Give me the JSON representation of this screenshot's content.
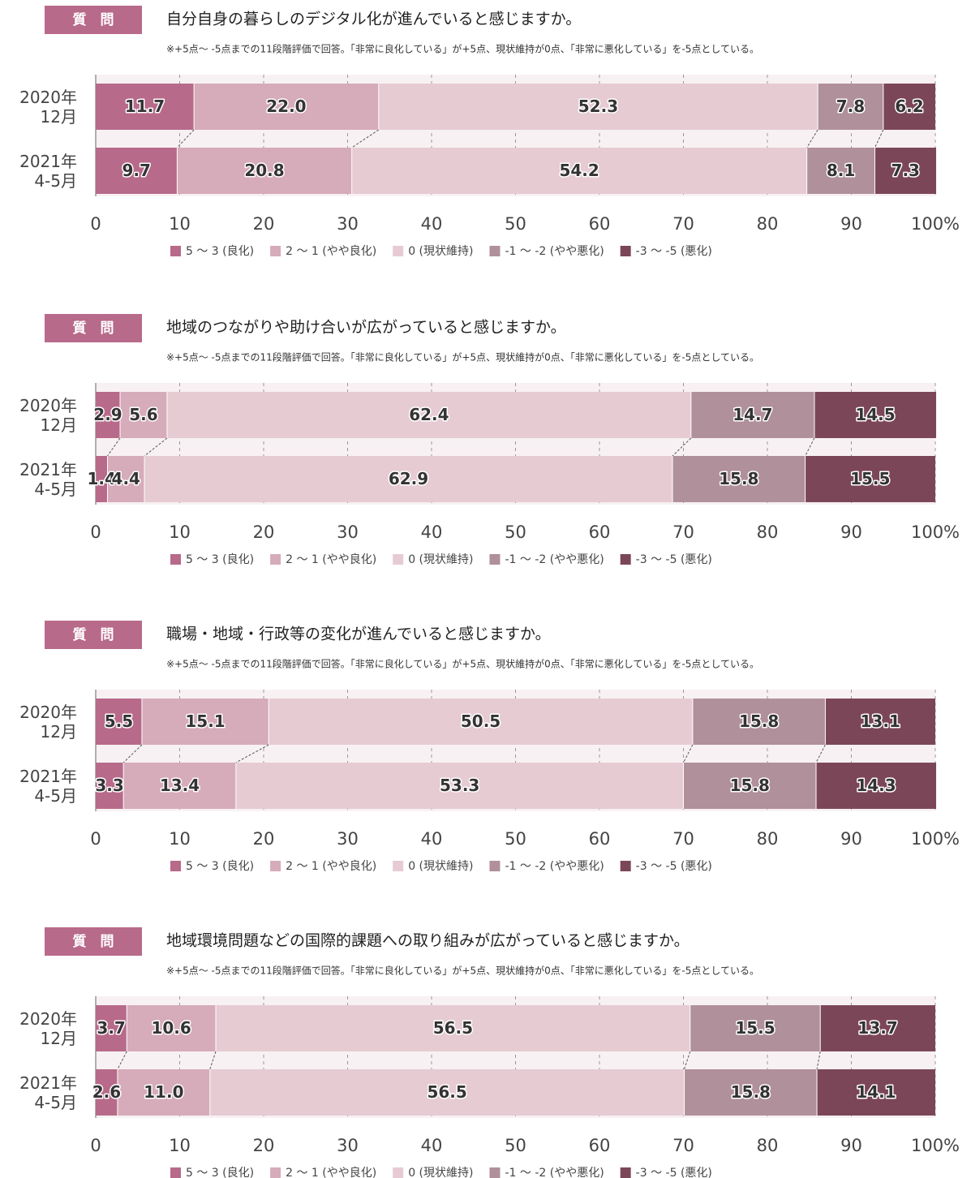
{
  "chart_data": [
    {
      "type": "bar",
      "orientation": "horizontal",
      "stacked": true,
      "badge": "質　問",
      "title": "自分自身の暮らしのデジタル化が進んでいると感じますか。",
      "subtitle": "※+5点～ -5点までの11段階評価で回答。「非常に良化している」が+5点、現状維持が0点、「非常に悪化している」を-5点としている。",
      "categories": [
        "2020年\n12月",
        "2021年\n4-5月"
      ],
      "xlim": [
        0,
        100
      ],
      "xticks": [
        0,
        10,
        20,
        30,
        40,
        50,
        60,
        70,
        80,
        90,
        {
          "value": 100,
          "label": "100%"
        }
      ],
      "grid": true,
      "legend": "bottom",
      "series": [
        {
          "name": "5 ～ 3 (良化)",
          "color": "#b86a8a",
          "values": [
            11.7,
            9.7
          ],
          "value_labels": [
            "11.7",
            "9.7"
          ]
        },
        {
          "name": "2 ～ 1 (やや良化)",
          "color": "#d6abba",
          "values": [
            22.0,
            20.8
          ],
          "value_labels": [
            "22.0",
            "20.8"
          ]
        },
        {
          "name": "0 (現状維持)",
          "color": "#e6cbd3",
          "values": [
            52.3,
            54.2
          ],
          "value_labels": [
            "52.3",
            "54.2"
          ]
        },
        {
          "name": "-1 ～ -2 (やや悪化)",
          "color": "#b0909b",
          "values": [
            7.8,
            8.1
          ],
          "value_labels": [
            "7.8",
            "8.1"
          ]
        },
        {
          "name": "-3 ～ -5 (悪化)",
          "color": "#7c4659",
          "values": [
            6.2,
            7.3
          ],
          "value_labels": [
            "6.2",
            "7.3"
          ]
        }
      ]
    },
    {
      "type": "bar",
      "orientation": "horizontal",
      "stacked": true,
      "badge": "質　問",
      "title": "地域のつながりや助け合いが広がっていると感じますか。",
      "subtitle": "※+5点～ -5点までの11段階評価で回答。「非常に良化している」が+5点、現状維持が0点、「非常に悪化している」を-5点としている。",
      "categories": [
        "2020年\n12月",
        "2021年\n4-5月"
      ],
      "xlim": [
        0,
        100
      ],
      "xticks": [
        0,
        10,
        20,
        30,
        40,
        50,
        60,
        70,
        80,
        90,
        {
          "value": 100,
          "label": "100%"
        }
      ],
      "grid": true,
      "legend": "bottom",
      "series": [
        {
          "name": "5 ～ 3 (良化)",
          "color": "#b86a8a",
          "values": [
            2.9,
            1.4
          ],
          "value_labels": [
            "2.9",
            "1.4"
          ]
        },
        {
          "name": "2 ～ 1 (やや良化)",
          "color": "#d6abba",
          "values": [
            5.6,
            4.4
          ],
          "value_labels": [
            "5.6",
            "4.4"
          ]
        },
        {
          "name": "0 (現状維持)",
          "color": "#e6cbd3",
          "values": [
            62.4,
            62.9
          ],
          "value_labels": [
            "62.4",
            "62.9"
          ]
        },
        {
          "name": "-1 ～ -2 (やや悪化)",
          "color": "#b0909b",
          "values": [
            14.7,
            15.8
          ],
          "value_labels": [
            "14.7",
            "15.8"
          ]
        },
        {
          "name": "-3 ～ -5 (悪化)",
          "color": "#7c4659",
          "values": [
            14.5,
            15.5
          ],
          "value_labels": [
            "14.5",
            "15.5"
          ]
        }
      ]
    },
    {
      "type": "bar",
      "orientation": "horizontal",
      "stacked": true,
      "badge": "質　問",
      "title": "職場・地域・行政等の変化が進んでいると感じますか。",
      "subtitle": "※+5点～ -5点までの11段階評価で回答。「非常に良化している」が+5点、現状維持が0点、「非常に悪化している」を-5点としている。",
      "categories": [
        "2020年\n12月",
        "2021年\n4-5月"
      ],
      "xlim": [
        0,
        100
      ],
      "xticks": [
        0,
        10,
        20,
        30,
        40,
        50,
        60,
        70,
        80,
        90,
        {
          "value": 100,
          "label": "100%"
        }
      ],
      "grid": true,
      "legend": "bottom",
      "series": [
        {
          "name": "5 ～ 3 (良化)",
          "color": "#b86a8a",
          "values": [
            5.5,
            3.3
          ],
          "value_labels": [
            "5.5",
            "3.3"
          ]
        },
        {
          "name": "2 ～ 1 (やや良化)",
          "color": "#d6abba",
          "values": [
            15.1,
            13.4
          ],
          "value_labels": [
            "15.1",
            "13.4"
          ]
        },
        {
          "name": "0 (現状維持)",
          "color": "#e6cbd3",
          "values": [
            50.5,
            53.3
          ],
          "value_labels": [
            "50.5",
            "53.3"
          ]
        },
        {
          "name": "-1 ～ -2 (やや悪化)",
          "color": "#b0909b",
          "values": [
            15.8,
            15.8
          ],
          "value_labels": [
            "15.8",
            "15.8"
          ]
        },
        {
          "name": "-3 ～ -5 (悪化)",
          "color": "#7c4659",
          "values": [
            13.1,
            14.3
          ],
          "value_labels": [
            "13.1",
            "14.3"
          ]
        }
      ]
    },
    {
      "type": "bar",
      "orientation": "horizontal",
      "stacked": true,
      "badge": "質　問",
      "title": "地域環境問題などの国際的課題への取り組みが広がっていると感じますか。",
      "subtitle": "※+5点～ -5点までの11段階評価で回答。「非常に良化している」が+5点、現状維持が0点、「非常に悪化している」を-5点としている。",
      "categories": [
        "2020年\n12月",
        "2021年\n4-5月"
      ],
      "xlim": [
        0,
        100
      ],
      "xticks": [
        0,
        10,
        20,
        30,
        40,
        50,
        60,
        70,
        80,
        90,
        {
          "value": 100,
          "label": "100%"
        }
      ],
      "grid": true,
      "legend": "bottom",
      "series": [
        {
          "name": "5 ～ 3 (良化)",
          "color": "#b86a8a",
          "values": [
            3.7,
            2.6
          ],
          "value_labels": [
            "3.7",
            "2.6"
          ]
        },
        {
          "name": "2 ～ 1 (やや良化)",
          "color": "#d6abba",
          "values": [
            10.6,
            11.0
          ],
          "value_labels": [
            "10.6",
            "11.0"
          ]
        },
        {
          "name": "0 (現状維持)",
          "color": "#e6cbd3",
          "values": [
            56.5,
            56.5
          ],
          "value_labels": [
            "56.5",
            "56.5"
          ]
        },
        {
          "name": "-1 ～ -2 (やや悪化)",
          "color": "#b0909b",
          "values": [
            15.5,
            15.8
          ],
          "value_labels": [
            "15.5",
            "15.8"
          ]
        },
        {
          "name": "-3 ～ -5 (悪化)",
          "color": "#7c4659",
          "values": [
            13.7,
            14.1
          ],
          "value_labels": [
            "13.7",
            "14.1"
          ]
        }
      ]
    }
  ]
}
